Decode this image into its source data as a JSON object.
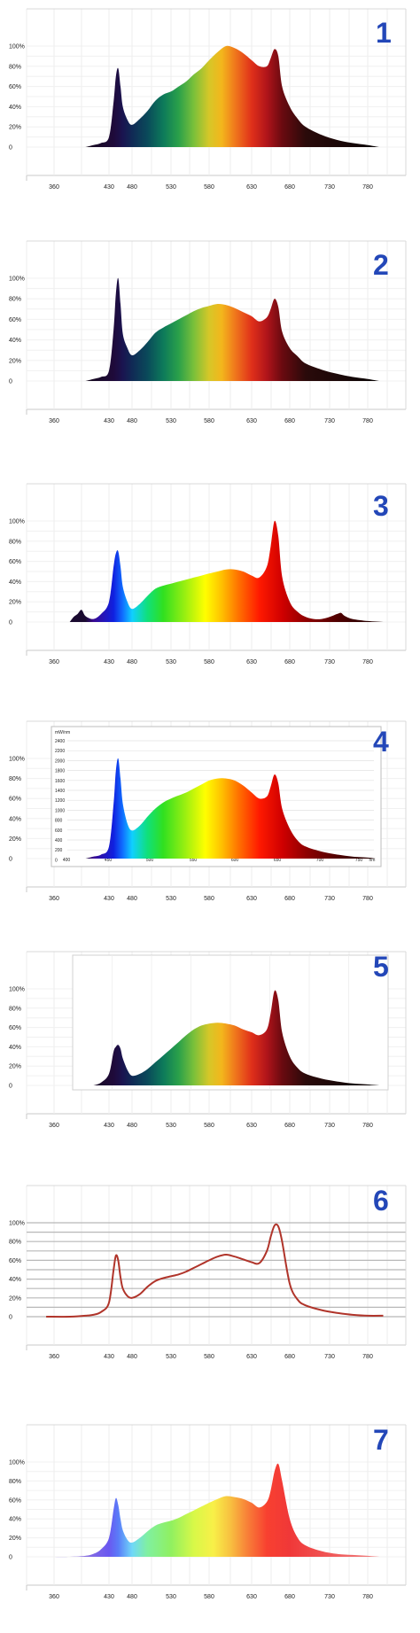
{
  "figure_labels": [
    "1",
    "2",
    "3",
    "4",
    "5",
    "6",
    "7"
  ],
  "chart_data": [
    {
      "type": "area",
      "fill": "spectrum-dark",
      "xticks": [
        "360",
        "430",
        "480",
        "530",
        "580",
        "630",
        "680",
        "730",
        "780"
      ],
      "yticks": [
        "0",
        "20%",
        "40%",
        "60%",
        "80%",
        "100%"
      ],
      "ylim": [
        0,
        100
      ],
      "x": [
        400,
        410,
        420,
        430,
        440,
        445,
        450,
        455,
        460,
        470,
        480,
        490,
        500,
        510,
        520,
        530,
        540,
        550,
        560,
        570,
        580,
        590,
        600,
        610,
        620,
        630,
        640,
        650,
        655,
        660,
        665,
        670,
        680,
        690,
        700,
        720,
        740,
        760,
        780,
        795
      ],
      "values": [
        0,
        2,
        4,
        10,
        45,
        70,
        78,
        60,
        40,
        27,
        22,
        28,
        36,
        46,
        52,
        55,
        60,
        65,
        72,
        78,
        86,
        94,
        100,
        98,
        93,
        86,
        80,
        80,
        88,
        97,
        90,
        60,
        40,
        28,
        20,
        12,
        7,
        4,
        2,
        0
      ]
    },
    {
      "type": "area",
      "fill": "spectrum-dark",
      "xticks": [
        "360",
        "430",
        "480",
        "530",
        "580",
        "630",
        "680",
        "730",
        "780"
      ],
      "yticks": [
        "0",
        "20%",
        "40%",
        "60%",
        "80%",
        "100%"
      ],
      "ylim": [
        0,
        100
      ],
      "x": [
        400,
        410,
        420,
        430,
        440,
        445,
        450,
        455,
        460,
        470,
        480,
        490,
        500,
        510,
        520,
        530,
        540,
        550,
        560,
        570,
        580,
        590,
        600,
        610,
        620,
        630,
        640,
        650,
        655,
        660,
        665,
        670,
        680,
        690,
        700,
        720,
        740,
        760,
        780,
        795
      ],
      "values": [
        0,
        2,
        4,
        10,
        50,
        85,
        100,
        75,
        46,
        32,
        25,
        30,
        38,
        47,
        52,
        56,
        60,
        64,
        68,
        71,
        73,
        75,
        74,
        71,
        67,
        63,
        58,
        62,
        70,
        80,
        72,
        48,
        32,
        24,
        17,
        11,
        7,
        4,
        2,
        0
      ]
    },
    {
      "type": "area",
      "fill": "spectrum-vivid",
      "xticks": [
        "360",
        "430",
        "480",
        "530",
        "580",
        "630",
        "680",
        "730",
        "780"
      ],
      "yticks": [
        "0",
        "20%",
        "40%",
        "60%",
        "80%",
        "100%"
      ],
      "ylim": [
        0,
        100
      ],
      "x": [
        380,
        385,
        390,
        395,
        400,
        410,
        420,
        430,
        440,
        445,
        450,
        455,
        460,
        470,
        480,
        490,
        500,
        510,
        520,
        530,
        540,
        550,
        560,
        570,
        580,
        590,
        600,
        610,
        620,
        630,
        640,
        650,
        655,
        660,
        665,
        670,
        680,
        690,
        700,
        710,
        720,
        730,
        740,
        745,
        750,
        760,
        780,
        800
      ],
      "values": [
        0,
        5,
        8,
        12,
        6,
        3,
        8,
        20,
        55,
        68,
        70,
        55,
        35,
        20,
        13,
        18,
        26,
        33,
        36,
        38,
        40,
        42,
        44,
        46,
        48,
        50,
        52,
        52,
        50,
        46,
        44,
        55,
        75,
        100,
        85,
        45,
        20,
        10,
        5,
        3,
        3,
        5,
        8,
        9,
        6,
        3,
        1,
        0
      ]
    },
    {
      "type": "area",
      "fill": "spectrum-vivid",
      "xticks": [
        "360",
        "430",
        "480",
        "530",
        "580",
        "630",
        "680",
        "730",
        "780"
      ],
      "yticks": [
        "0",
        "20%",
        "40%",
        "60%",
        "80%",
        "100%"
      ],
      "ylim": [
        0,
        100
      ],
      "inset_xticks": [
        "400",
        "450",
        "500",
        "550",
        "600",
        "650",
        "700",
        "750",
        "nm"
      ],
      "inset_yticks": [
        "2400",
        "2200",
        "2000",
        "1800",
        "1600",
        "1400",
        "1200",
        "1000",
        "800",
        "600",
        "400",
        "200",
        "0"
      ],
      "inset_ylabel": "mW/nm",
      "x": [
        400,
        410,
        420,
        430,
        440,
        445,
        450,
        455,
        460,
        470,
        480,
        490,
        500,
        510,
        520,
        530,
        540,
        550,
        560,
        570,
        580,
        590,
        600,
        610,
        620,
        630,
        640,
        650,
        655,
        660,
        665,
        670,
        680,
        690,
        700,
        720,
        740,
        760,
        780,
        790
      ],
      "values": [
        0,
        2,
        4,
        12,
        55,
        88,
        100,
        80,
        55,
        35,
        28,
        33,
        42,
        50,
        56,
        60,
        63,
        66,
        70,
        74,
        78,
        80,
        80,
        78,
        73,
        66,
        60,
        62,
        72,
        84,
        75,
        50,
        30,
        18,
        12,
        7,
        4,
        2,
        1,
        0
      ]
    },
    {
      "type": "area",
      "fill": "spectrum-dark",
      "xticks": [
        "360",
        "430",
        "480",
        "530",
        "580",
        "630",
        "680",
        "730",
        "780"
      ],
      "yticks": [
        "0",
        "20%",
        "40%",
        "60%",
        "80%",
        "100%"
      ],
      "ylim": [
        0,
        100
      ],
      "x": [
        410,
        420,
        430,
        440,
        445,
        450,
        455,
        460,
        470,
        480,
        490,
        500,
        510,
        520,
        530,
        540,
        550,
        560,
        570,
        580,
        590,
        600,
        610,
        620,
        630,
        640,
        650,
        655,
        660,
        665,
        670,
        680,
        690,
        700,
        720,
        740,
        760,
        780,
        795
      ],
      "values": [
        0,
        3,
        12,
        35,
        40,
        42,
        38,
        28,
        16,
        10,
        12,
        17,
        24,
        31,
        38,
        45,
        52,
        58,
        62,
        64,
        65,
        64,
        62,
        58,
        55,
        52,
        58,
        75,
        98,
        88,
        55,
        30,
        18,
        12,
        7,
        4,
        2,
        1,
        0
      ]
    },
    {
      "type": "line",
      "xticks": [
        "360",
        "430",
        "480",
        "530",
        "580",
        "630",
        "680",
        "730",
        "780"
      ],
      "yticks": [
        "0",
        "20%",
        "40%",
        "60%",
        "80%",
        "100%"
      ],
      "ylim": [
        0,
        100
      ],
      "color": "#b0342a",
      "x": [
        350,
        380,
        400,
        410,
        420,
        430,
        440,
        445,
        450,
        455,
        460,
        470,
        480,
        490,
        500,
        510,
        520,
        530,
        540,
        550,
        560,
        570,
        580,
        590,
        600,
        610,
        620,
        630,
        640,
        650,
        655,
        660,
        665,
        670,
        680,
        690,
        700,
        720,
        740,
        760,
        780,
        800
      ],
      "values": [
        0,
        0,
        1,
        2,
        5,
        15,
        50,
        65,
        60,
        42,
        30,
        22,
        20,
        24,
        32,
        38,
        41,
        43,
        45,
        48,
        52,
        56,
        60,
        64,
        66,
        64,
        61,
        58,
        57,
        70,
        85,
        97,
        96,
        80,
        35,
        18,
        12,
        7,
        4,
        2,
        1,
        1
      ]
    },
    {
      "type": "area",
      "fill": "spectrum-light",
      "xticks": [
        "360",
        "430",
        "480",
        "530",
        "580",
        "630",
        "680",
        "730",
        "780"
      ],
      "yticks": [
        "0",
        "20%",
        "40%",
        "60%",
        "80%",
        "100%"
      ],
      "ylim": [
        0,
        100
      ],
      "x": [
        350,
        380,
        400,
        410,
        420,
        430,
        440,
        445,
        450,
        455,
        460,
        470,
        480,
        490,
        500,
        510,
        520,
        530,
        540,
        550,
        560,
        570,
        580,
        590,
        600,
        610,
        620,
        630,
        640,
        650,
        655,
        660,
        665,
        670,
        680,
        690,
        700,
        720,
        740,
        760,
        780,
        795
      ],
      "values": [
        0,
        0,
        1,
        3,
        8,
        20,
        50,
        62,
        55,
        40,
        28,
        18,
        15,
        20,
        27,
        33,
        36,
        38,
        41,
        45,
        49,
        53,
        57,
        61,
        64,
        63,
        61,
        57,
        52,
        58,
        70,
        90,
        98,
        80,
        40,
        20,
        12,
        6,
        3,
        2,
        1,
        0
      ]
    }
  ]
}
